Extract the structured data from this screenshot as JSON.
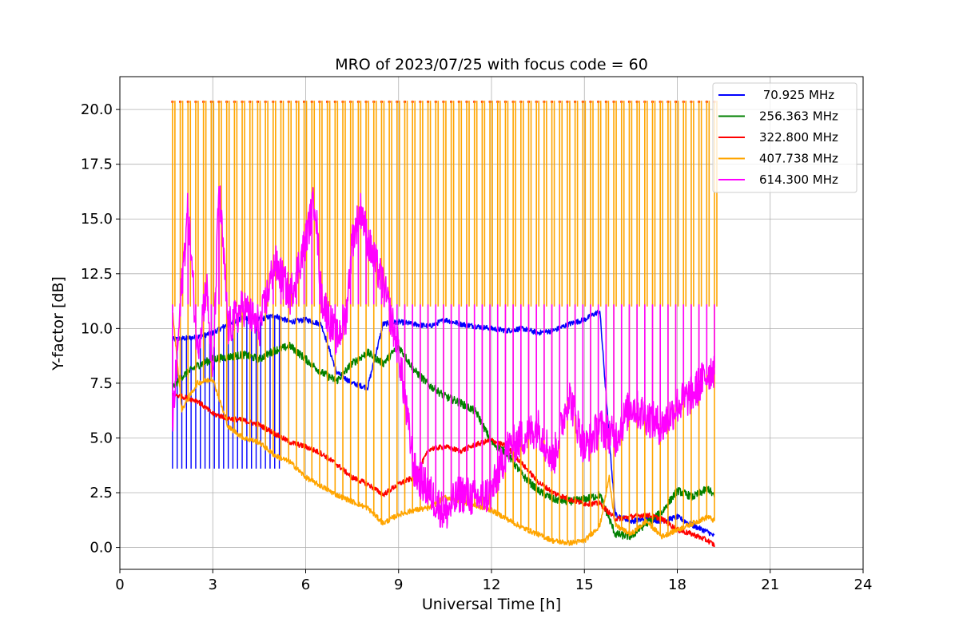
{
  "chart_data": {
    "type": "line",
    "title": "MRO of 2023/07/25 with focus code = 60",
    "xlabel": "Universal Time [h]",
    "ylabel": "Y-factor [dB]",
    "xlim": [
      0,
      24
    ],
    "ylim": [
      -1.0,
      21.5
    ],
    "grid": true,
    "legend_position": "top-right",
    "xticks": [
      0,
      3,
      6,
      9,
      12,
      15,
      18,
      21,
      24
    ],
    "xtick_labels": [
      "0",
      "3",
      "6",
      "9",
      "12",
      "15",
      "18",
      "21",
      "24"
    ],
    "yticks": [
      0.0,
      2.5,
      5.0,
      7.5,
      10.0,
      12.5,
      15.0,
      17.5,
      20.0
    ],
    "ytick_labels": [
      "0.0",
      "2.5",
      "5.0",
      "7.5",
      "10.0",
      "12.5",
      "15.0",
      "17.5",
      "20.0"
    ],
    "x_range_of_data": [
      1.7,
      19.2
    ],
    "calibration_spike_spacing_h": 0.25,
    "series": [
      {
        "name": " 70.925 MHz",
        "color": "#0000ff",
        "x": [
          1.7,
          2.5,
          3.0,
          3.5,
          4.0,
          4.5,
          5.0,
          5.5,
          6.0,
          6.5,
          7.0,
          7.5,
          8.0,
          8.5,
          9.0,
          9.5,
          10.0,
          10.5,
          11.0,
          11.5,
          12.0,
          12.5,
          13.0,
          13.5,
          14.0,
          14.5,
          15.0,
          15.5,
          15.8,
          16.0,
          16.5,
          17.0,
          17.5,
          18.0,
          18.5,
          19.0,
          19.2
        ],
        "values": [
          9.5,
          9.6,
          9.8,
          10.2,
          10.5,
          10.4,
          10.6,
          10.3,
          10.4,
          10.2,
          8.0,
          7.5,
          7.3,
          10.2,
          10.3,
          10.2,
          10.1,
          10.4,
          10.2,
          10.1,
          10.0,
          9.9,
          10.0,
          9.8,
          9.9,
          10.2,
          10.4,
          10.8,
          5.0,
          1.5,
          1.2,
          1.3,
          1.2,
          1.4,
          1.0,
          0.7,
          0.5
        ]
      },
      {
        "name": "256.363 MHz",
        "color": "#008000",
        "x": [
          1.7,
          2.0,
          2.5,
          3.0,
          3.5,
          4.0,
          4.5,
          5.0,
          5.5,
          6.0,
          6.5,
          7.0,
          7.5,
          8.0,
          8.5,
          9.0,
          9.5,
          10.0,
          10.5,
          11.0,
          11.5,
          12.0,
          12.5,
          13.0,
          13.5,
          14.0,
          14.5,
          15.0,
          15.5,
          16.0,
          16.5,
          17.0,
          17.5,
          18.0,
          18.5,
          19.0,
          19.2
        ],
        "values": [
          7.3,
          7.8,
          8.3,
          8.6,
          8.7,
          8.8,
          8.6,
          9.0,
          9.2,
          8.6,
          8.0,
          7.6,
          8.4,
          8.9,
          8.4,
          9.2,
          8.1,
          7.4,
          6.9,
          6.6,
          6.2,
          4.8,
          4.3,
          3.3,
          2.6,
          2.2,
          2.1,
          2.2,
          2.4,
          0.6,
          0.5,
          1.1,
          1.6,
          2.6,
          2.3,
          2.7,
          2.3
        ]
      },
      {
        "name": "322.800 MHz",
        "color": "#ff0000",
        "x": [
          1.7,
          2.5,
          3.0,
          3.5,
          4.0,
          4.5,
          5.0,
          5.5,
          6.0,
          6.5,
          7.0,
          7.5,
          8.0,
          8.5,
          9.0,
          9.5,
          10.0,
          10.5,
          11.0,
          11.5,
          12.0,
          12.5,
          13.0,
          13.5,
          14.0,
          14.5,
          15.0,
          15.5,
          16.0,
          16.5,
          17.0,
          17.5,
          18.0,
          18.5,
          19.0,
          19.2
        ],
        "values": [
          7.0,
          6.7,
          6.1,
          5.9,
          5.8,
          5.6,
          5.2,
          4.8,
          4.6,
          4.3,
          3.8,
          3.2,
          2.9,
          2.4,
          2.9,
          3.2,
          4.5,
          4.6,
          4.4,
          4.7,
          4.9,
          4.6,
          3.8,
          3.0,
          2.5,
          2.2,
          2.0,
          2.0,
          1.3,
          1.4,
          1.5,
          1.3,
          0.8,
          0.6,
          0.3,
          0.1
        ]
      },
      {
        "name": "407.738 MHz",
        "color": "#ffa500",
        "x": [
          1.7,
          2.0,
          2.5,
          3.0,
          3.5,
          4.0,
          4.5,
          5.0,
          5.5,
          6.0,
          6.5,
          7.0,
          7.5,
          8.0,
          8.5,
          9.0,
          9.5,
          10.0,
          10.5,
          11.0,
          11.5,
          12.0,
          12.5,
          13.0,
          13.5,
          14.0,
          14.5,
          15.0,
          15.5,
          15.8,
          16.0,
          16.5,
          17.0,
          17.5,
          18.0,
          18.5,
          19.0,
          19.2
        ],
        "values": [
          10.8,
          6.3,
          7.5,
          7.7,
          5.5,
          5.0,
          4.8,
          4.2,
          3.9,
          3.2,
          2.8,
          2.4,
          2.1,
          1.8,
          1.1,
          1.5,
          1.7,
          1.8,
          2.3,
          2.1,
          1.9,
          1.7,
          1.3,
          0.9,
          0.6,
          0.3,
          0.2,
          0.3,
          1.0,
          3.2,
          1.0,
          0.6,
          1.2,
          0.5,
          0.8,
          1.1,
          1.4,
          1.2
        ],
        "spike_peak": 20.4,
        "plateau": 11.0
      },
      {
        "name": "614.300 MHz",
        "color": "#ff00ff",
        "x": [
          1.7,
          2.0,
          2.2,
          2.5,
          2.8,
          3.0,
          3.2,
          3.5,
          4.0,
          4.5,
          5.0,
          5.5,
          6.0,
          6.3,
          6.5,
          7.0,
          7.3,
          7.5,
          7.8,
          8.0,
          8.5,
          9.0,
          9.5,
          10.0,
          10.5,
          11.0,
          11.5,
          12.0,
          12.5,
          13.0,
          13.5,
          14.0,
          14.5,
          15.0,
          15.5,
          16.0,
          16.5,
          17.0,
          17.5,
          18.0,
          18.5,
          19.0,
          19.2
        ],
        "values": [
          5.5,
          12.0,
          15.5,
          9.0,
          12.0,
          7.5,
          16.5,
          10.0,
          11.0,
          10.0,
          13.0,
          11.5,
          14.0,
          16.0,
          11.5,
          9.5,
          10.5,
          14.0,
          15.5,
          14.0,
          12.0,
          9.0,
          3.5,
          2.5,
          1.5,
          2.5,
          2.2,
          2.5,
          4.5,
          5.0,
          5.5,
          4.0,
          7.0,
          4.5,
          5.5,
          5.0,
          6.5,
          6.0,
          5.5,
          6.5,
          7.0,
          8.0,
          8.2
        ],
        "plateau": 11.1
      }
    ]
  }
}
